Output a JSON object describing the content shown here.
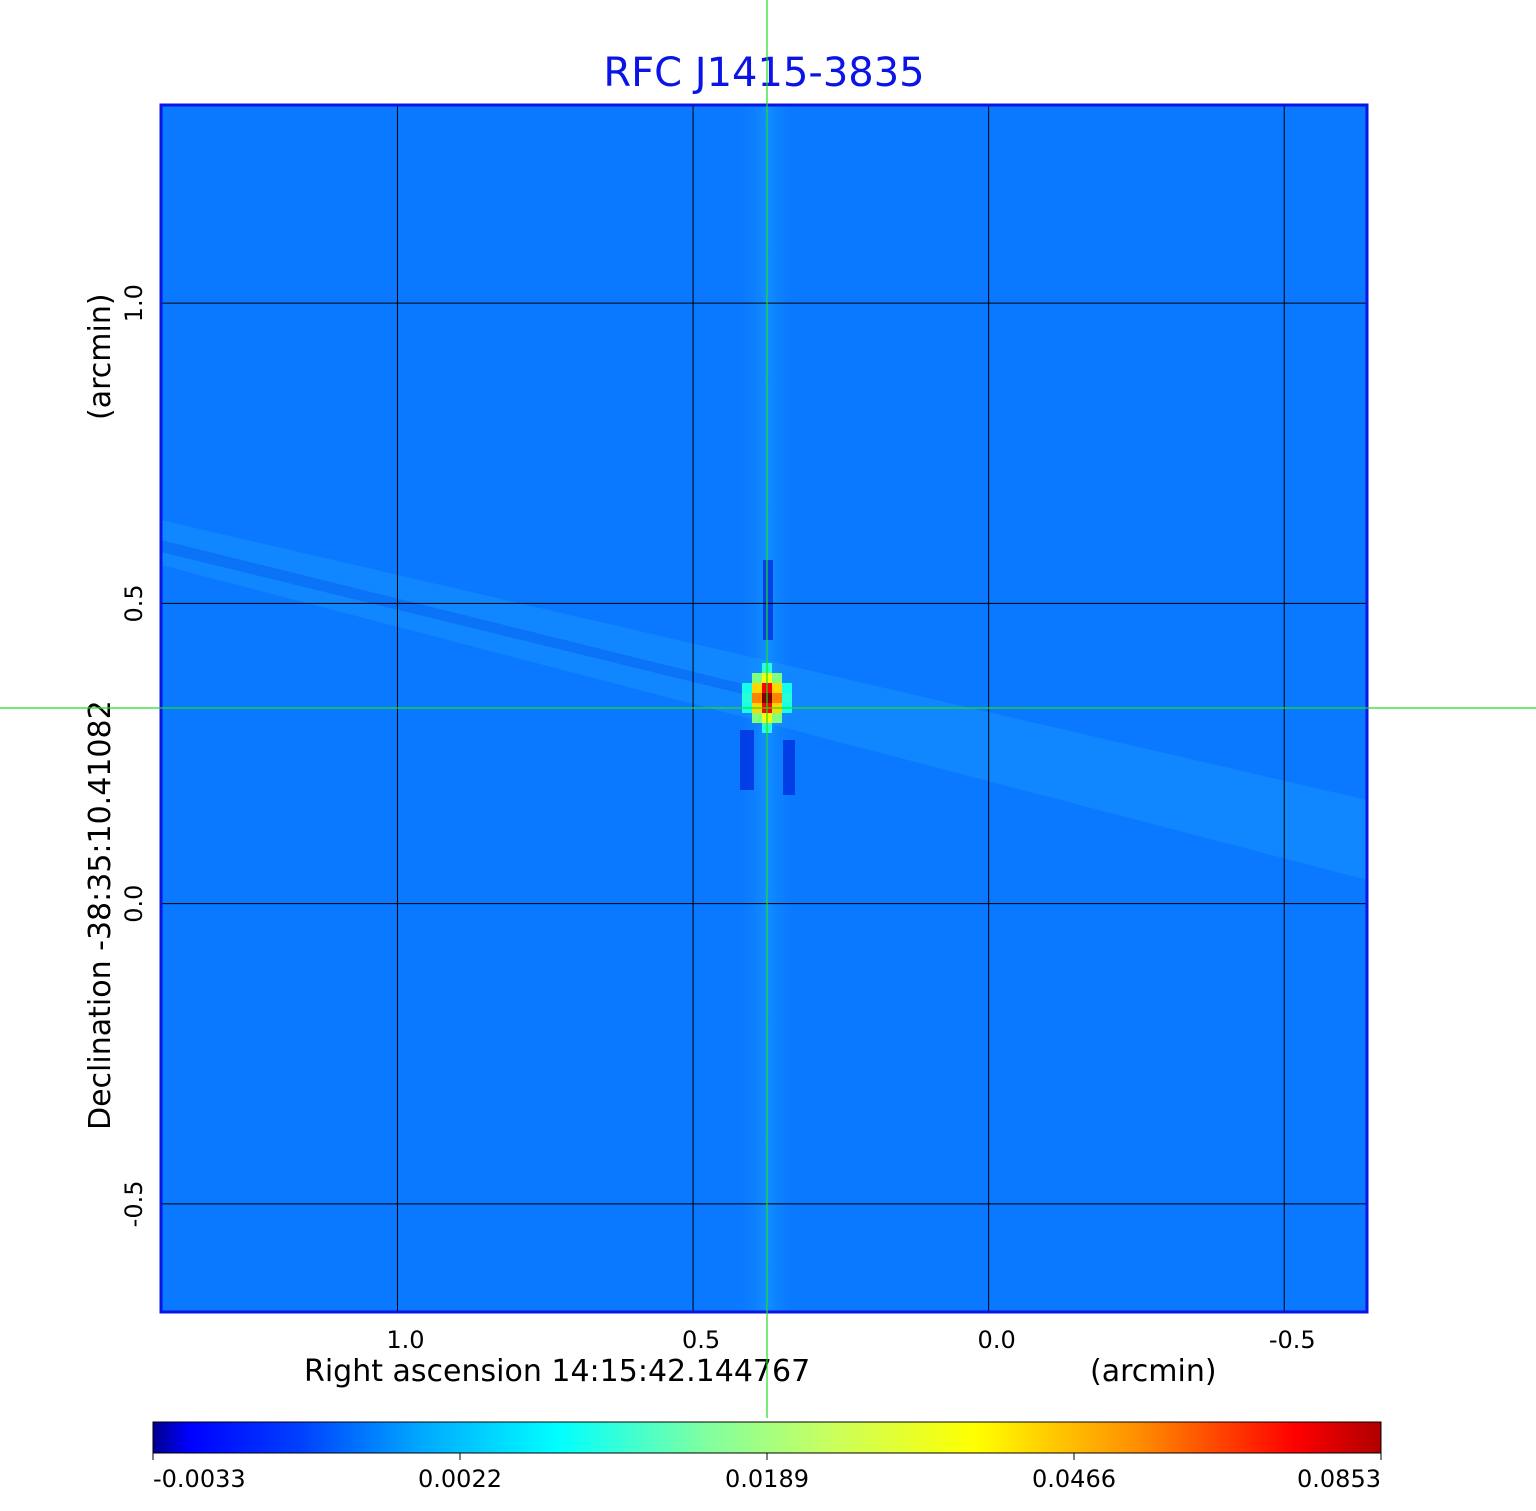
{
  "chart_data": {
    "type": "heatmap",
    "title": "RFC J1415-3835",
    "title_color": "#0a14e6",
    "xlabel": "Right ascension  14:15:42.144767",
    "xlabel_unit": "(arcmin)",
    "ylabel": "Declination  -38:35:10.41082",
    "ylabel_unit": "(arcmin)",
    "x_ticks": [
      "1.0",
      "0.5",
      "0.0",
      "-0.5"
    ],
    "x_tick_values": [
      1.0,
      0.5,
      0.0,
      -0.5
    ],
    "y_ticks": [
      "1.0",
      "0.5",
      "0.0",
      "-0.5"
    ],
    "y_tick_values": [
      1.0,
      0.5,
      0.0,
      -0.5
    ],
    "xlim": [
      1.4,
      -0.64
    ],
    "ylim": [
      -0.68,
      1.33
    ],
    "grid": true,
    "crosshair": {
      "x": 0.37,
      "y": 0.33,
      "color": "#22dd22"
    },
    "peak_value": 0.0853,
    "colormap": "jet",
    "colorbar": {
      "placement": "bottom",
      "ticks": [
        "-0.0033",
        "0.0022",
        "0.0189",
        "0.0466",
        "0.0853"
      ],
      "range": [
        -0.0033,
        0.0853
      ]
    },
    "frame_color": "#0a14e6",
    "background_color": "#0a78ff"
  }
}
